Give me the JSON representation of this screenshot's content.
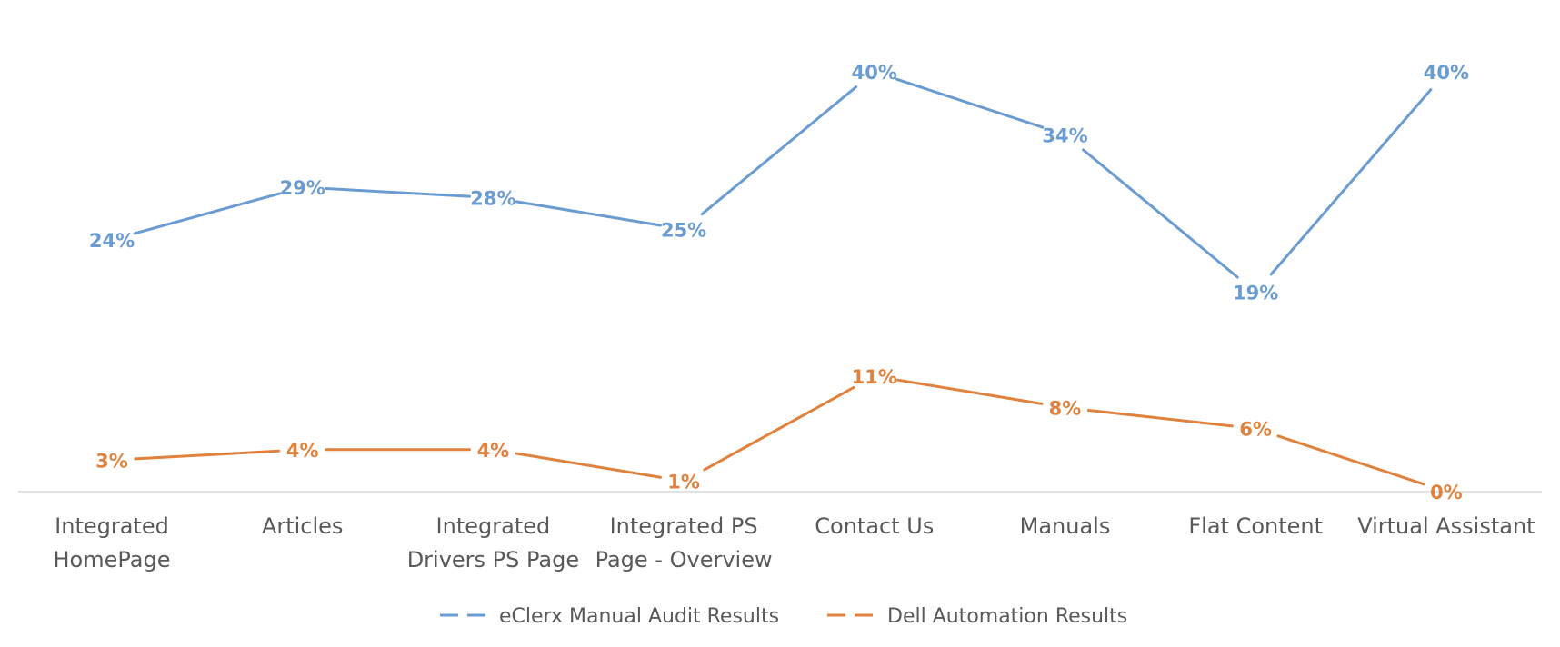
{
  "chart_data": {
    "type": "line",
    "title": "",
    "xlabel": "",
    "ylabel": "",
    "categories": [
      [
        "Integrated",
        "HomePage"
      ],
      [
        "Articles"
      ],
      [
        "Integrated",
        "Drivers PS Page"
      ],
      [
        "Integrated PS",
        "Page - Overview"
      ],
      [
        "Contact Us"
      ],
      [
        "Manuals"
      ],
      [
        "Flat Content"
      ],
      [
        "Virtual Assistant"
      ]
    ],
    "ylim": [
      0,
      45
    ],
    "grid": false,
    "legend_position": "bottom",
    "series": [
      {
        "name": "eClerx Manual Audit Results",
        "color": "#6a9bd1",
        "values": [
          24,
          29,
          28,
          25,
          40,
          34,
          19,
          40
        ],
        "labels": [
          "24%",
          "29%",
          "28%",
          "25%",
          "40%",
          "34%",
          "19%",
          "40%"
        ]
      },
      {
        "name": "Dell Automation Results",
        "color": "#e0823d",
        "values": [
          3,
          4,
          4,
          1,
          11,
          8,
          6,
          0
        ],
        "labels": [
          "3%",
          "4%",
          "4%",
          "1%",
          "11%",
          "8%",
          "6%",
          "0%"
        ]
      }
    ]
  }
}
